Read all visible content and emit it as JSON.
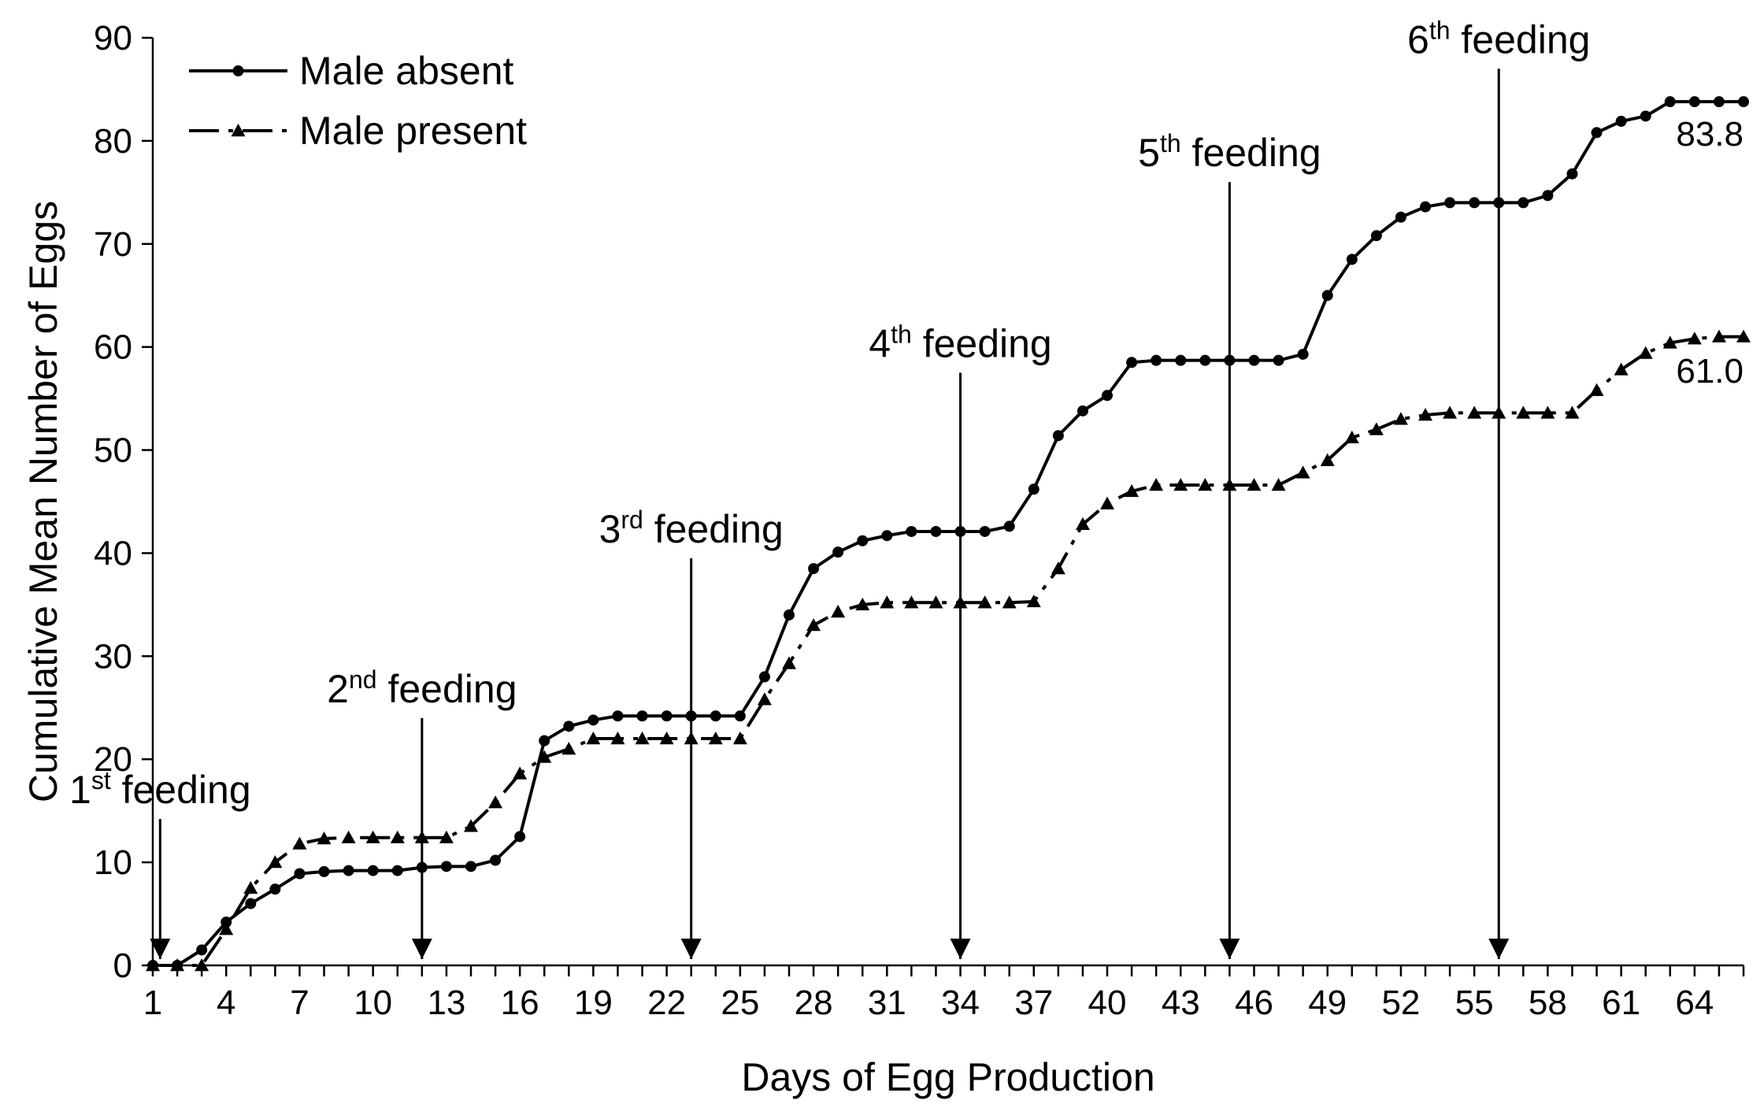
{
  "chart_data": {
    "type": "line",
    "xlabel": "Days of Egg Production",
    "ylabel": "Cumulative Mean Number of Eggs",
    "xlim": [
      1,
      66
    ],
    "ylim": [
      0,
      90
    ],
    "x_ticks": [
      1,
      4,
      7,
      10,
      13,
      16,
      19,
      22,
      25,
      28,
      31,
      34,
      37,
      40,
      43,
      46,
      49,
      52,
      55,
      58,
      61,
      64
    ],
    "y_ticks": [
      0,
      10,
      20,
      30,
      40,
      50,
      60,
      70,
      80,
      90
    ],
    "legend_position": "top-left",
    "series": [
      {
        "name": "Male absent",
        "style": "solid-circle",
        "x": [
          1,
          2,
          3,
          4,
          5,
          6,
          7,
          8,
          9,
          10,
          11,
          12,
          13,
          14,
          15,
          16,
          17,
          18,
          19,
          20,
          21,
          22,
          23,
          24,
          25,
          26,
          27,
          28,
          29,
          30,
          31,
          32,
          33,
          34,
          35,
          36,
          37,
          38,
          39,
          40,
          41,
          42,
          43,
          44,
          45,
          46,
          47,
          48,
          49,
          50,
          51,
          52,
          53,
          54,
          55,
          56,
          57,
          58,
          59,
          60,
          61,
          62,
          63,
          64,
          65,
          66
        ],
        "values": [
          0,
          0,
          1.5,
          4.2,
          6,
          7.4,
          8.9,
          9.1,
          9.2,
          9.2,
          9.2,
          9.5,
          9.6,
          9.6,
          10.2,
          12.5,
          21.8,
          23.2,
          23.8,
          24.2,
          24.2,
          24.2,
          24.2,
          24.2,
          24.2,
          28,
          34,
          38.5,
          40.1,
          41.2,
          41.7,
          42.1,
          42.1,
          42.1,
          42.1,
          42.6,
          46.2,
          51.4,
          53.8,
          55.3,
          58.5,
          58.7,
          58.7,
          58.7,
          58.7,
          58.7,
          58.7,
          59.3,
          65,
          68.5,
          70.8,
          72.6,
          73.6,
          74,
          74,
          74,
          74,
          74.7,
          76.8,
          80.8,
          81.9,
          82.4,
          83.8,
          83.8,
          83.8,
          83.8
        ]
      },
      {
        "name": "Male present",
        "style": "dashdot-triangle",
        "x": [
          1,
          2,
          3,
          4,
          5,
          6,
          7,
          8,
          9,
          10,
          11,
          12,
          13,
          14,
          15,
          16,
          17,
          18,
          19,
          20,
          21,
          22,
          23,
          24,
          25,
          26,
          27,
          28,
          29,
          30,
          31,
          32,
          33,
          34,
          35,
          36,
          37,
          38,
          39,
          40,
          41,
          42,
          43,
          44,
          45,
          46,
          47,
          48,
          49,
          50,
          51,
          52,
          53,
          54,
          55,
          56,
          57,
          58,
          59,
          60,
          61,
          62,
          63,
          64,
          65,
          66
        ],
        "values": [
          0,
          0,
          0,
          3.5,
          7.5,
          10,
          11.8,
          12.3,
          12.4,
          12.4,
          12.4,
          12.4,
          12.4,
          13.5,
          15.8,
          18.6,
          20.2,
          21,
          22,
          22,
          22,
          22,
          22,
          22,
          22,
          25.8,
          29.3,
          33,
          34.3,
          35,
          35.2,
          35.2,
          35.2,
          35.2,
          35.2,
          35.2,
          35.3,
          38.5,
          42.8,
          44.8,
          46,
          46.6,
          46.6,
          46.6,
          46.6,
          46.6,
          46.6,
          47.8,
          49,
          51.2,
          52,
          53,
          53.4,
          53.6,
          53.6,
          53.6,
          53.6,
          53.6,
          53.6,
          55.8,
          57.8,
          59.4,
          60.4,
          60.8,
          61,
          61
        ]
      }
    ],
    "end_labels": [
      {
        "series": "Male absent",
        "text": "83.8"
      },
      {
        "series": "Male present",
        "text": "61.0"
      }
    ],
    "annotations": [
      {
        "day": 1.3,
        "ordinal": "1",
        "suffix": "st",
        "word": "feeding",
        "arrow_top_value": 14.2
      },
      {
        "day": 12,
        "ordinal": "2",
        "suffix": "nd",
        "word": "feeding",
        "arrow_top_value": 24
      },
      {
        "day": 23,
        "ordinal": "3",
        "suffix": "rd",
        "word": "feeding",
        "arrow_top_value": 39.5
      },
      {
        "day": 34,
        "ordinal": "4",
        "suffix": "th",
        "word": "feeding",
        "arrow_top_value": 57.5
      },
      {
        "day": 45,
        "ordinal": "5",
        "suffix": "th",
        "word": "feeding",
        "arrow_top_value": 76
      },
      {
        "day": 56,
        "ordinal": "6",
        "suffix": "th",
        "word": "feeding",
        "arrow_top_value": 87
      }
    ]
  }
}
